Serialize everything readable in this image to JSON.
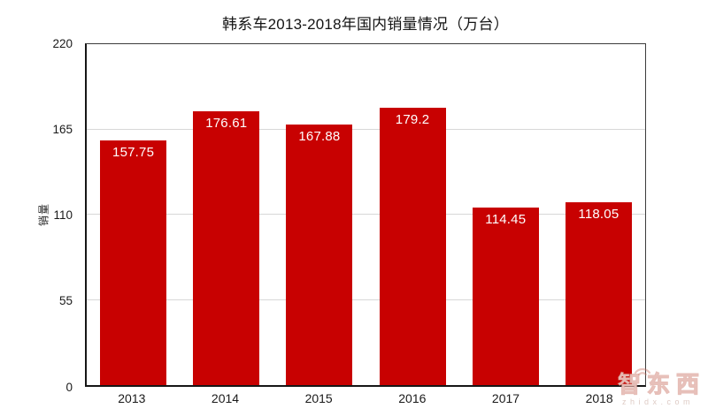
{
  "title": "韩系车2013-2018年国内销量情况（万台）",
  "watermark": {
    "brand": "智东西",
    "domain": "zhidx.com"
  },
  "chart_data": {
    "type": "bar",
    "title": "韩系车2013-2018年国内销量情况（万台）",
    "categories": [
      "2013",
      "2014",
      "2015",
      "2016",
      "2017",
      "2018"
    ],
    "values": [
      157.75,
      176.61,
      167.88,
      179.2,
      114.45,
      118.05
    ],
    "value_labels": [
      "157.75",
      "176.61",
      "167.88",
      "179.2",
      "114.45",
      "118.05"
    ],
    "xlabel": "",
    "ylabel": "销量",
    "ylim": [
      0,
      220
    ],
    "yticks": [
      0,
      55,
      110,
      165,
      220
    ],
    "grid": true,
    "legend": "none",
    "bar_color": "#c80101",
    "value_label_color": "#ffffff",
    "gridline_color": "#d7d7d7"
  }
}
